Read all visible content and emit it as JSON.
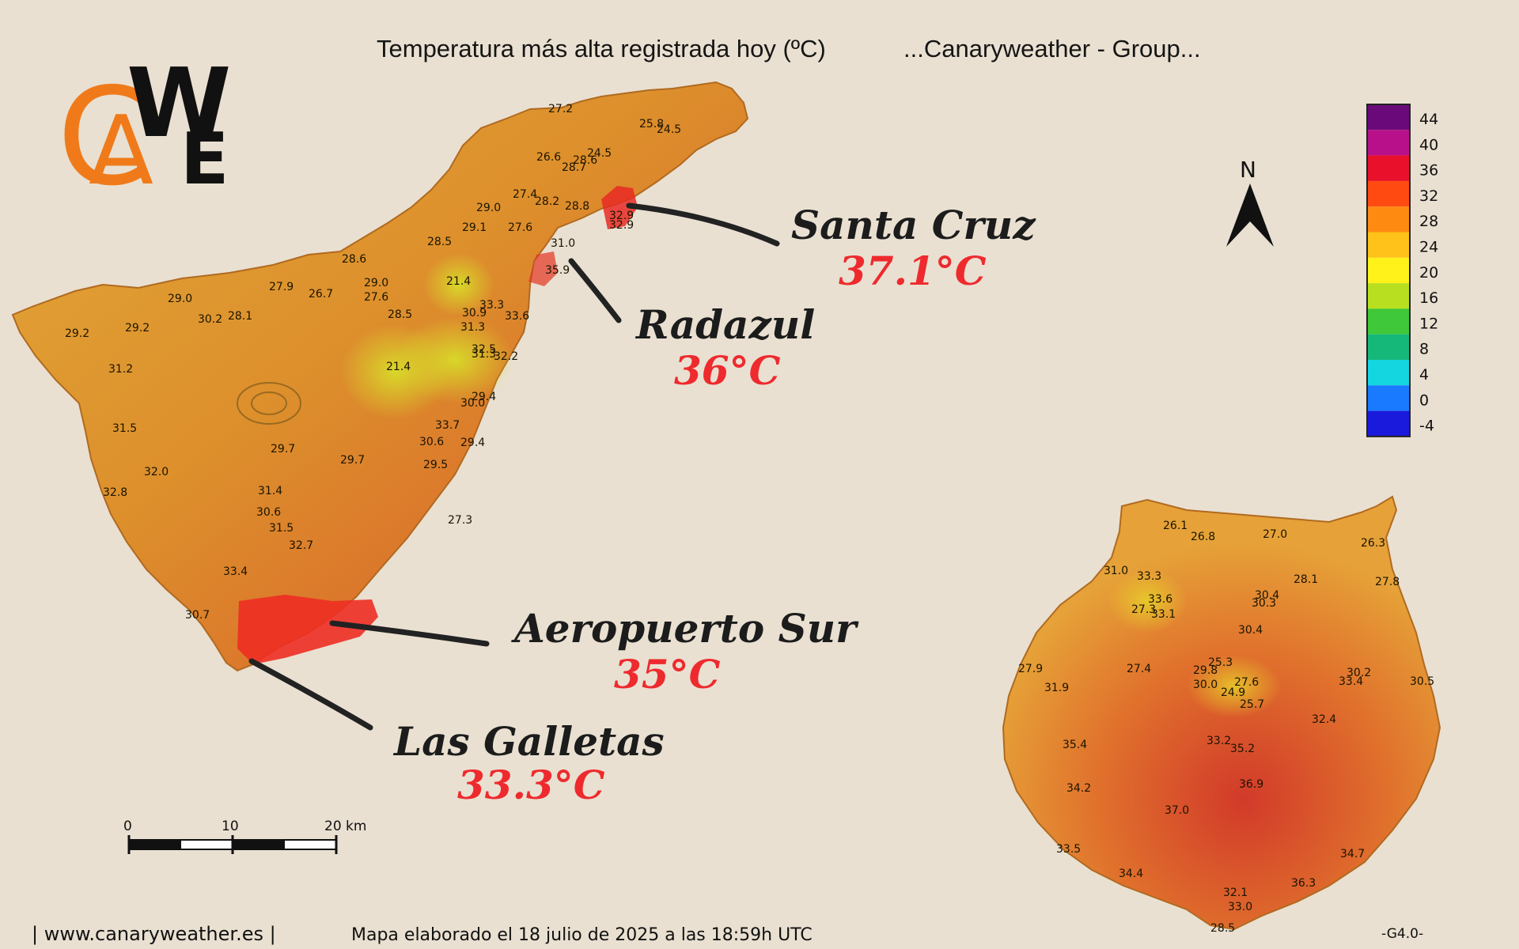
{
  "title": "Temperatura más alta registrada hoy (ºC)",
  "source_label": "...Canaryweather - Group...",
  "logo": {
    "letters": "CAWE",
    "colors": {
      "c_a": "#f07a1a",
      "w_e": "#111111"
    }
  },
  "north_label": "N",
  "legend": {
    "values": [
      "44",
      "40",
      "36",
      "32",
      "28",
      "24",
      "20",
      "16",
      "12",
      "8",
      "4",
      "0",
      "-4"
    ],
    "colors": [
      "#6a0a7a",
      "#b8108a",
      "#e8102a",
      "#ff4a12",
      "#ff8a12",
      "#ffc21a",
      "#fff21a",
      "#b8e020",
      "#3ec83a",
      "#16b87a",
      "#14d6e0",
      "#1a7aff",
      "#1a1adc"
    ]
  },
  "callouts": [
    {
      "name": "Santa Cruz",
      "temp": "37.1°C"
    },
    {
      "name": "Radazul",
      "temp": "36°C"
    },
    {
      "name": "Aeropuerto Sur",
      "temp": "35°C"
    },
    {
      "name": "Las Galletas",
      "temp": "33.3°C"
    }
  ],
  "tenerife_stations": [
    "27.2",
    "25.8",
    "24.5",
    "26.6",
    "28.6",
    "28.7",
    "24.5",
    "27.4",
    "28.2",
    "28.8",
    "29.0",
    "29.1",
    "27.6",
    "32.9",
    "32.9",
    "31.0",
    "28.5",
    "35.9",
    "28.6",
    "21.4",
    "29.0",
    "27.9",
    "26.7",
    "27.6",
    "29.0",
    "30.2",
    "28.1",
    "29.2",
    "29.2",
    "28.5",
    "30.9",
    "33.3",
    "33.6",
    "31.3",
    "32.5",
    "31.3",
    "32.2",
    "21.4",
    "31.2",
    "30.0",
    "29.4",
    "31.5",
    "33.7",
    "30.6",
    "29.4",
    "29.7",
    "29.7",
    "29.5",
    "32.0",
    "31.4",
    "32.8",
    "30.6",
    "31.5",
    "32.7",
    "27.3",
    "33.4",
    "30.7"
  ],
  "gran_canaria_stations": [
    "26.1",
    "26.8",
    "27.0",
    "26.3",
    "31.0",
    "33.3",
    "28.1",
    "27.8",
    "33.6",
    "27.3",
    "33.1",
    "30.4",
    "30.3",
    "30.4",
    "27.9",
    "27.4",
    "25.3",
    "29.8",
    "30.0",
    "27.6",
    "24.9",
    "30.2",
    "33.4",
    "30.5",
    "31.9",
    "25.7",
    "32.4",
    "33.2",
    "35.2",
    "35.4",
    "36.9",
    "34.2",
    "37.0",
    "33.5",
    "34.7",
    "34.4",
    "36.3",
    "32.1",
    "33.0",
    "28.5"
  ],
  "scale_bar": {
    "labels": [
      "0",
      "10",
      "20 km"
    ]
  },
  "footer": {
    "website": "| www.canaryweather.es |",
    "made": "Mapa elaborado el 18 julio de 2025 a las 18:59h UTC",
    "version": "-G4.0-"
  }
}
